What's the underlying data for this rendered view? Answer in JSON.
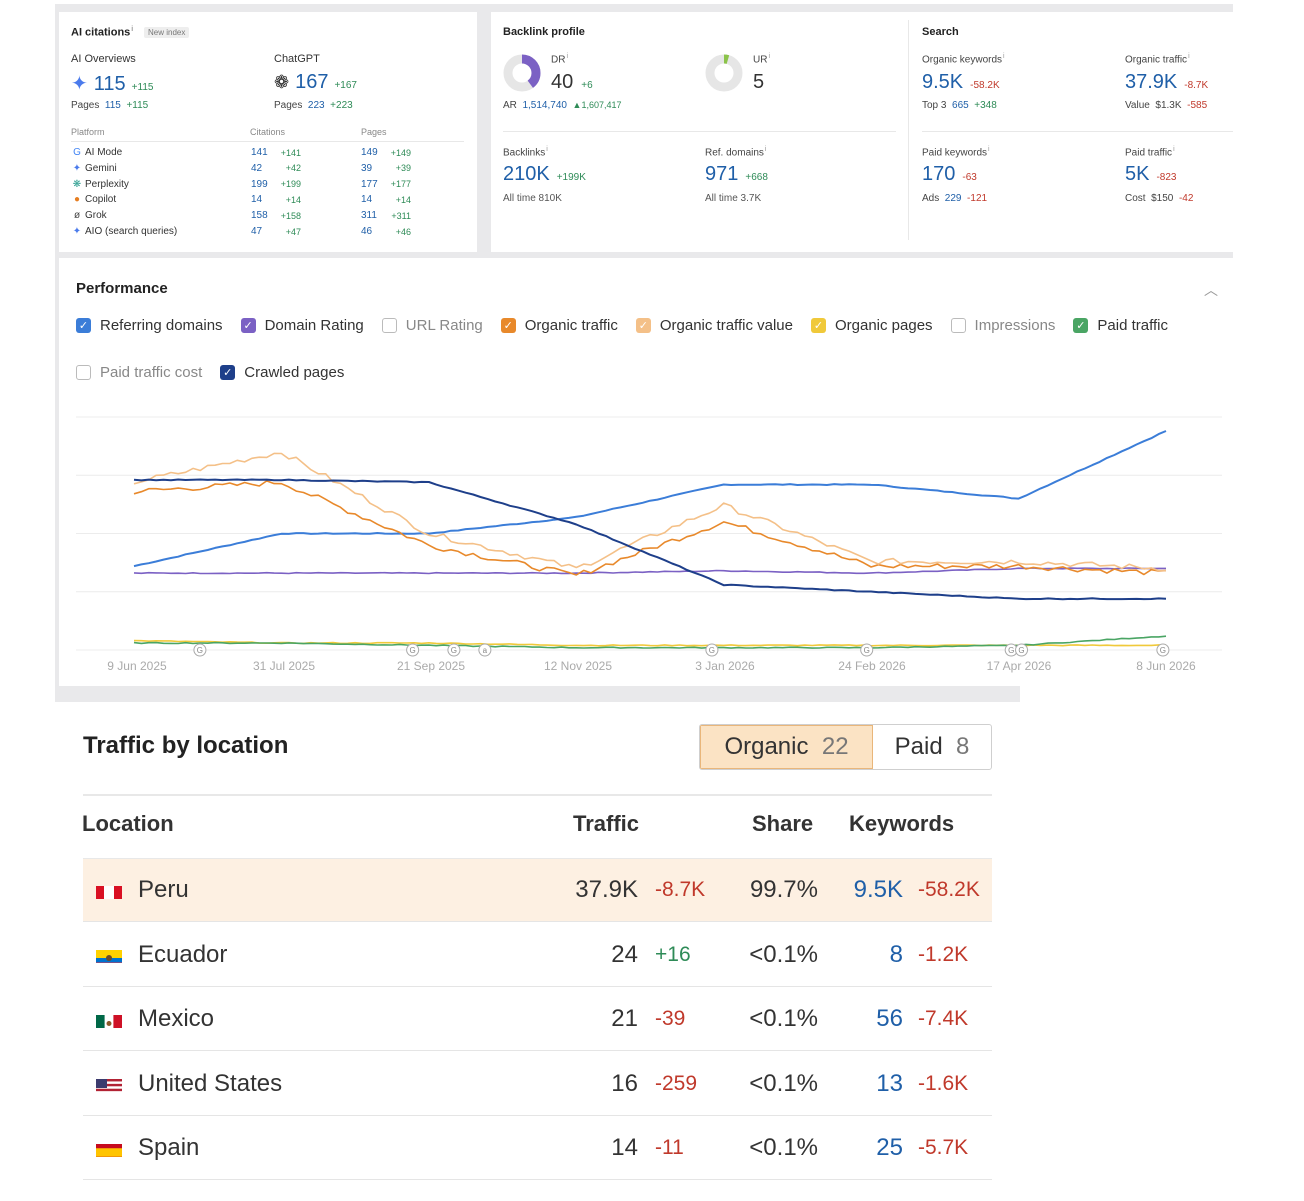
{
  "ai_citations": {
    "title": "AI citations",
    "badge": "New index",
    "overviews_label": "AI Overviews",
    "overviews_value": "115",
    "overviews_delta": "+115",
    "overviews_pages_label": "Pages",
    "overviews_pages_value": "115",
    "overviews_pages_delta": "+115",
    "chatgpt_label": "ChatGPT",
    "chatgpt_value": "167",
    "chatgpt_delta": "+167",
    "chatgpt_pages_label": "Pages",
    "chatgpt_pages_value": "223",
    "chatgpt_pages_delta": "+223",
    "col_platform": "Platform",
    "col_citations": "Citations",
    "col_pages": "Pages",
    "rows": [
      {
        "icon": "G",
        "icon_color": "#4285f4",
        "name": "AI Mode",
        "citations": "141",
        "citations_delta": "+141",
        "pages": "149",
        "pages_delta": "+149"
      },
      {
        "icon": "✦",
        "icon_color": "#4b7bec",
        "name": "Gemini",
        "citations": "42",
        "citations_delta": "+42",
        "pages": "39",
        "pages_delta": "+39"
      },
      {
        "icon": "❋",
        "icon_color": "#2a9d8f",
        "name": "Perplexity",
        "citations": "199",
        "citations_delta": "+199",
        "pages": "177",
        "pages_delta": "+177"
      },
      {
        "icon": "●",
        "icon_color": "#e67e22",
        "name": "Copilot",
        "citations": "14",
        "citations_delta": "+14",
        "pages": "14",
        "pages_delta": "+14"
      },
      {
        "icon": "ø",
        "icon_color": "#444",
        "name": "Grok",
        "citations": "158",
        "citations_delta": "+158",
        "pages": "311",
        "pages_delta": "+311"
      },
      {
        "icon": "✦",
        "icon_color": "#4b7bec",
        "name": "AIO (search queries)",
        "citations": "47",
        "citations_delta": "+47",
        "pages": "46",
        "pages_delta": "+46"
      }
    ]
  },
  "backlink_profile": {
    "title": "Backlink profile",
    "dr_label": "DR",
    "dr_value": "40",
    "dr_delta": "+6",
    "ar_label": "AR",
    "ar_value": "1,514,740",
    "ar_delta": "▲1,607,417",
    "ur_label": "UR",
    "ur_value": "5",
    "backlinks_label": "Backlinks",
    "backlinks_value": "210K",
    "backlinks_delta": "+199K",
    "backlinks_alltime": "All time  810K",
    "refdomains_label": "Ref. domains",
    "refdomains_value": "971",
    "refdomains_delta": "+668",
    "refdomains_alltime": "All time  3.7K"
  },
  "search": {
    "title": "Search",
    "org_kw_label": "Organic keywords",
    "org_kw_value": "9.5K",
    "org_kw_delta": "-58.2K",
    "top3_label": "Top 3",
    "top3_value": "665",
    "top3_delta": "+348",
    "org_traffic_label": "Organic traffic",
    "org_traffic_value": "37.9K",
    "org_traffic_delta": "-8.7K",
    "value_label": "Value",
    "value_value": "$1.3K",
    "value_delta": "-585",
    "paid_kw_label": "Paid keywords",
    "paid_kw_value": "170",
    "paid_kw_delta": "-63",
    "ads_label": "Ads",
    "ads_value": "229",
    "ads_delta": "-121",
    "paid_traffic_label": "Paid traffic",
    "paid_traffic_value": "5K",
    "paid_traffic_delta": "-823",
    "cost_label": "Cost",
    "cost_value": "$150",
    "cost_delta": "-42"
  },
  "performance": {
    "title": "Performance",
    "checkboxes": [
      {
        "label": "Referring domains",
        "checked": true,
        "color": "#3b7dd8"
      },
      {
        "label": "Domain Rating",
        "checked": true,
        "color": "#7b61c4"
      },
      {
        "label": "URL Rating",
        "checked": false,
        "color": "#bbb"
      },
      {
        "label": "Organic traffic",
        "checked": true,
        "color": "#e8892b"
      },
      {
        "label": "Organic traffic value",
        "checked": true,
        "color": "#f4c088"
      },
      {
        "label": "Organic pages",
        "checked": true,
        "color": "#f0c93a"
      },
      {
        "label": "Impressions",
        "checked": false,
        "color": "#bbb"
      },
      {
        "label": "Paid traffic",
        "checked": true,
        "color": "#4aa564"
      },
      {
        "label": "Paid traffic cost",
        "checked": false,
        "color": "#bbb"
      },
      {
        "label": "Crawled pages",
        "checked": true,
        "color": "#1e3f8a"
      }
    ],
    "x_ticks": [
      "9 Jun 2025",
      "31 Jul 2025",
      "21 Sep 2025",
      "12 Nov 2025",
      "3 Jan 2026",
      "24 Feb 2026",
      "17 Apr 2026",
      "8 Jun 2026"
    ],
    "markers": [
      "G",
      "G",
      "G",
      "a",
      "G",
      "G",
      "G",
      "G",
      "G"
    ]
  },
  "chart_data": {
    "type": "line",
    "x": [
      "9 Jun 2025",
      "31 Jul 2025",
      "21 Sep 2025",
      "12 Nov 2025",
      "3 Jan 2026",
      "24 Feb 2026",
      "17 Apr 2026",
      "8 Jun 2026"
    ],
    "series": [
      {
        "name": "Referring domains",
        "color": "#3b7dd8",
        "values": [
          0.36,
          0.5,
          0.5,
          0.57,
          0.71,
          0.71,
          0.65,
          0.94
        ]
      },
      {
        "name": "Domain Rating",
        "color": "#7b61c4",
        "values": [
          0.33,
          0.33,
          0.33,
          0.33,
          0.34,
          0.33,
          0.35,
          0.35
        ]
      },
      {
        "name": "Organic traffic",
        "color": "#e8892b",
        "values": [
          0.68,
          0.72,
          0.45,
          0.32,
          0.55,
          0.36,
          0.36,
          0.33
        ]
      },
      {
        "name": "Organic traffic value",
        "color": "#f4c088",
        "values": [
          0.72,
          0.85,
          0.5,
          0.35,
          0.62,
          0.38,
          0.38,
          0.35
        ]
      },
      {
        "name": "Organic pages",
        "color": "#f0c93a",
        "values": [
          0.04,
          0.03,
          0.03,
          0.02,
          0.02,
          0.02,
          0.02,
          0.02
        ]
      },
      {
        "name": "Paid traffic",
        "color": "#4aa564",
        "values": [
          0.03,
          0.03,
          0.02,
          0.01,
          0.01,
          0.01,
          0.02,
          0.06
        ]
      },
      {
        "name": "Crawled pages",
        "color": "#1e3f8a",
        "values": [
          0.73,
          0.73,
          0.72,
          0.54,
          0.28,
          0.25,
          0.22,
          0.22
        ]
      }
    ]
  },
  "location": {
    "title": "Traffic by location",
    "tab_organic_label": "Organic",
    "tab_organic_count": "22",
    "tab_paid_label": "Paid",
    "tab_paid_count": "8",
    "col_location": "Location",
    "col_traffic": "Traffic",
    "col_share": "Share",
    "col_keywords": "Keywords",
    "rows": [
      {
        "flag": "peru-flag",
        "name": "Peru",
        "traffic": "37.9K",
        "traffic_delta": "-8.7K",
        "share": "99.7%",
        "keywords": "9.5K",
        "keywords_delta": "-58.2K"
      },
      {
        "flag": "ecuador-flag",
        "name": "Ecuador",
        "traffic": "24",
        "traffic_delta": "+16",
        "share": "<0.1%",
        "keywords": "8",
        "keywords_delta": "-1.2K"
      },
      {
        "flag": "mexico-flag",
        "name": "Mexico",
        "traffic": "21",
        "traffic_delta": "-39",
        "share": "<0.1%",
        "keywords": "56",
        "keywords_delta": "-7.4K"
      },
      {
        "flag": "us-flag",
        "name": "United States",
        "traffic": "16",
        "traffic_delta": "-259",
        "share": "<0.1%",
        "keywords": "13",
        "keywords_delta": "-1.6K"
      },
      {
        "flag": "spain-flag",
        "name": "Spain",
        "traffic": "14",
        "traffic_delta": "-11",
        "share": "<0.1%",
        "keywords": "25",
        "keywords_delta": "-5.7K"
      }
    ]
  }
}
